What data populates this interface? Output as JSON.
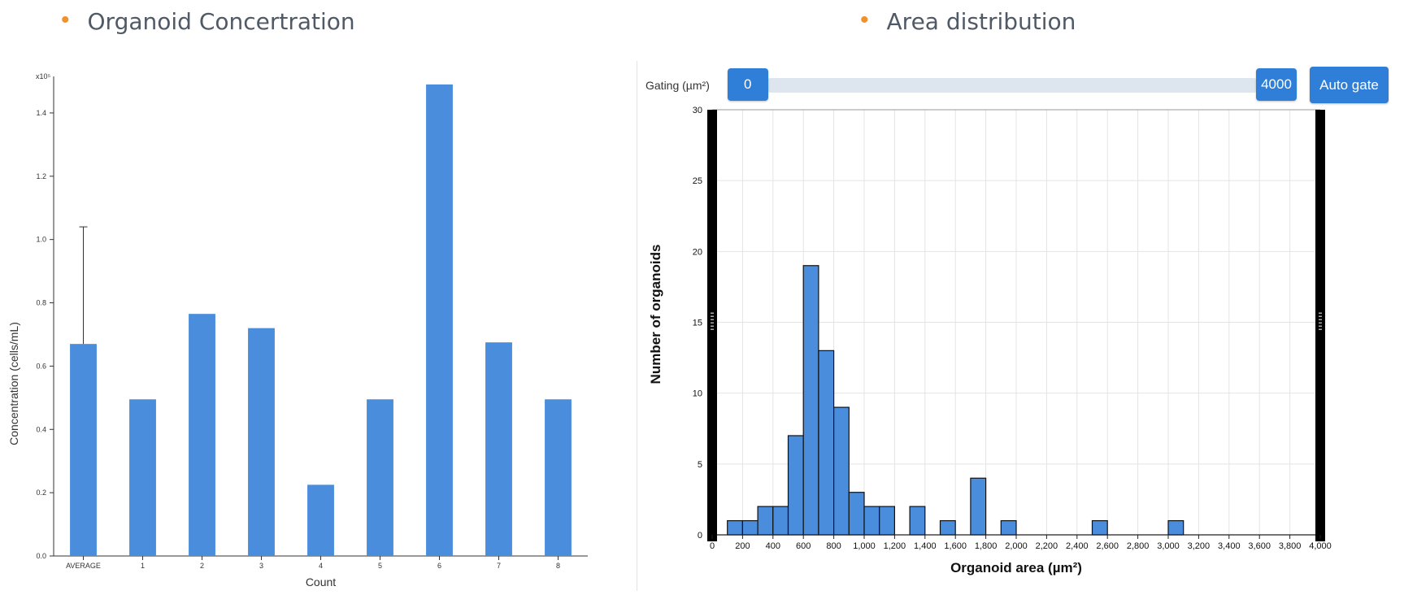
{
  "left_panel": {
    "bullet": "•",
    "title": "Organoid Concertration"
  },
  "right_panel": {
    "bullet": "•",
    "title": "Area distribution",
    "gating": {
      "label": "Gating (µm²)",
      "min_value": "0",
      "max_value": "4000",
      "auto_gate_label": "Auto gate"
    }
  },
  "colors": {
    "bar": "#4a8ddd",
    "bullet": "#f0912c",
    "button": "#2f7ed8",
    "hist_bar": "#4a8ddd"
  },
  "chart_data": [
    {
      "type": "bar",
      "title": "",
      "categories": [
        "AVERAGE",
        "1",
        "2",
        "3",
        "4",
        "5",
        "6",
        "7",
        "8"
      ],
      "values": [
        0.67,
        0.495,
        0.765,
        0.72,
        0.225,
        0.495,
        1.49,
        0.675,
        0.495
      ],
      "error_bars": [
        {
          "category": "AVERAGE",
          "upper": 1.04
        }
      ],
      "xlabel": "Count",
      "ylabel": "Concentration (cells/mL)",
      "y_multiplier": "x10⁵",
      "ylim": [
        0,
        1.5
      ],
      "yticks": [
        0.0,
        0.2,
        0.4,
        0.6,
        0.8,
        1.0,
        1.2,
        1.4
      ],
      "ytick_labels": [
        "0.0",
        "0.2",
        "0.4",
        "0.6",
        "0.8",
        "1.0",
        "1.2",
        "1.4"
      ],
      "grid": false
    },
    {
      "type": "bar",
      "subtype": "histogram",
      "title": "",
      "xlabel": "Organoid area (µm²)",
      "ylabel": "Number of organoids",
      "xlim": [
        0,
        4000
      ],
      "ylim": [
        0,
        30
      ],
      "bin_width": 100,
      "bins": [
        {
          "x0": 100,
          "count": 1
        },
        {
          "x0": 200,
          "count": 1
        },
        {
          "x0": 300,
          "count": 2
        },
        {
          "x0": 400,
          "count": 2
        },
        {
          "x0": 500,
          "count": 7
        },
        {
          "x0": 600,
          "count": 19
        },
        {
          "x0": 700,
          "count": 13
        },
        {
          "x0": 800,
          "count": 9
        },
        {
          "x0": 900,
          "count": 3
        },
        {
          "x0": 1000,
          "count": 2
        },
        {
          "x0": 1100,
          "count": 2
        },
        {
          "x0": 1300,
          "count": 2
        },
        {
          "x0": 1500,
          "count": 1
        },
        {
          "x0": 1700,
          "count": 4
        },
        {
          "x0": 1900,
          "count": 1
        },
        {
          "x0": 2500,
          "count": 1
        },
        {
          "x0": 3000,
          "count": 1
        }
      ],
      "xticks": [
        0,
        200,
        400,
        600,
        800,
        1000,
        1200,
        1400,
        1600,
        1800,
        2000,
        2200,
        2400,
        2600,
        2800,
        3000,
        3200,
        3400,
        3600,
        3800,
        4000
      ],
      "xtick_labels": [
        "0",
        "200",
        "400",
        "600",
        "800",
        "1,000",
        "1,200",
        "1,400",
        "1,600",
        "1,800",
        "2,000",
        "2,200",
        "2,400",
        "2,600",
        "2,800",
        "3,000",
        "3,200",
        "3,400",
        "3,600",
        "3,800",
        "4,000"
      ],
      "yticks": [
        0,
        5,
        10,
        15,
        20,
        25,
        30
      ],
      "ytick_labels": [
        "0",
        "5",
        "10",
        "15",
        "20",
        "25",
        "30"
      ],
      "grid": true
    }
  ]
}
